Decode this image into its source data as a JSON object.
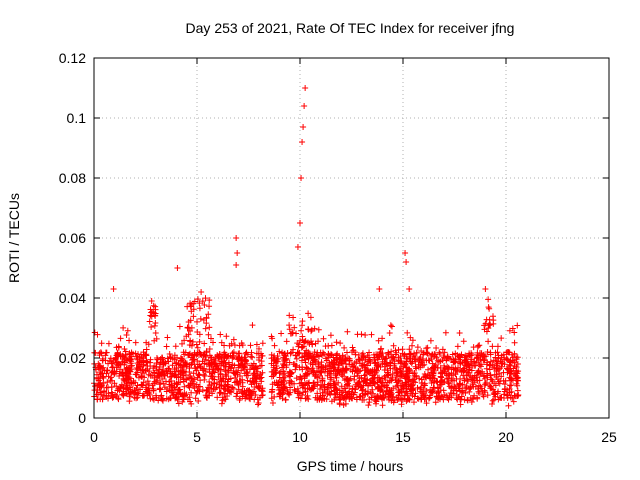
{
  "chart_data": {
    "type": "scatter",
    "title": "Day 253 of 2021, Rate Of TEC Index for receiver jfng",
    "xlabel": "GPS time / hours",
    "ylabel": "ROTI / TECUs",
    "xlim": [
      0,
      25
    ],
    "ylim": [
      0,
      0.12
    ],
    "xticks": [
      "0",
      "5",
      "10",
      "15",
      "20",
      "25"
    ],
    "yticks": [
      "0",
      "0.02",
      "0.04",
      "0.06",
      "0.08",
      "0.1",
      "0.12"
    ],
    "grid": true,
    "marker": "+",
    "series_color": "#ff0000",
    "data_extent_hours": [
      0.0,
      20.6
    ],
    "gap_hours": [
      8.2,
      8.6
    ],
    "highlights": [
      {
        "x": 0.95,
        "y": 0.043
      },
      {
        "x": 2.8,
        "y": 0.039
      },
      {
        "x": 4.05,
        "y": 0.05
      },
      {
        "x": 5.2,
        "y": 0.042
      },
      {
        "x": 6.9,
        "y": 0.06
      },
      {
        "x": 6.95,
        "y": 0.055
      },
      {
        "x": 6.9,
        "y": 0.051
      },
      {
        "x": 9.9,
        "y": 0.057
      },
      {
        "x": 10.0,
        "y": 0.065
      },
      {
        "x": 10.05,
        "y": 0.08
      },
      {
        "x": 10.1,
        "y": 0.092
      },
      {
        "x": 10.15,
        "y": 0.097
      },
      {
        "x": 10.2,
        "y": 0.104
      },
      {
        "x": 10.25,
        "y": 0.11
      },
      {
        "x": 13.85,
        "y": 0.043
      },
      {
        "x": 15.1,
        "y": 0.055
      },
      {
        "x": 15.15,
        "y": 0.052
      },
      {
        "x": 15.3,
        "y": 0.043
      },
      {
        "x": 19.0,
        "y": 0.043
      }
    ]
  }
}
